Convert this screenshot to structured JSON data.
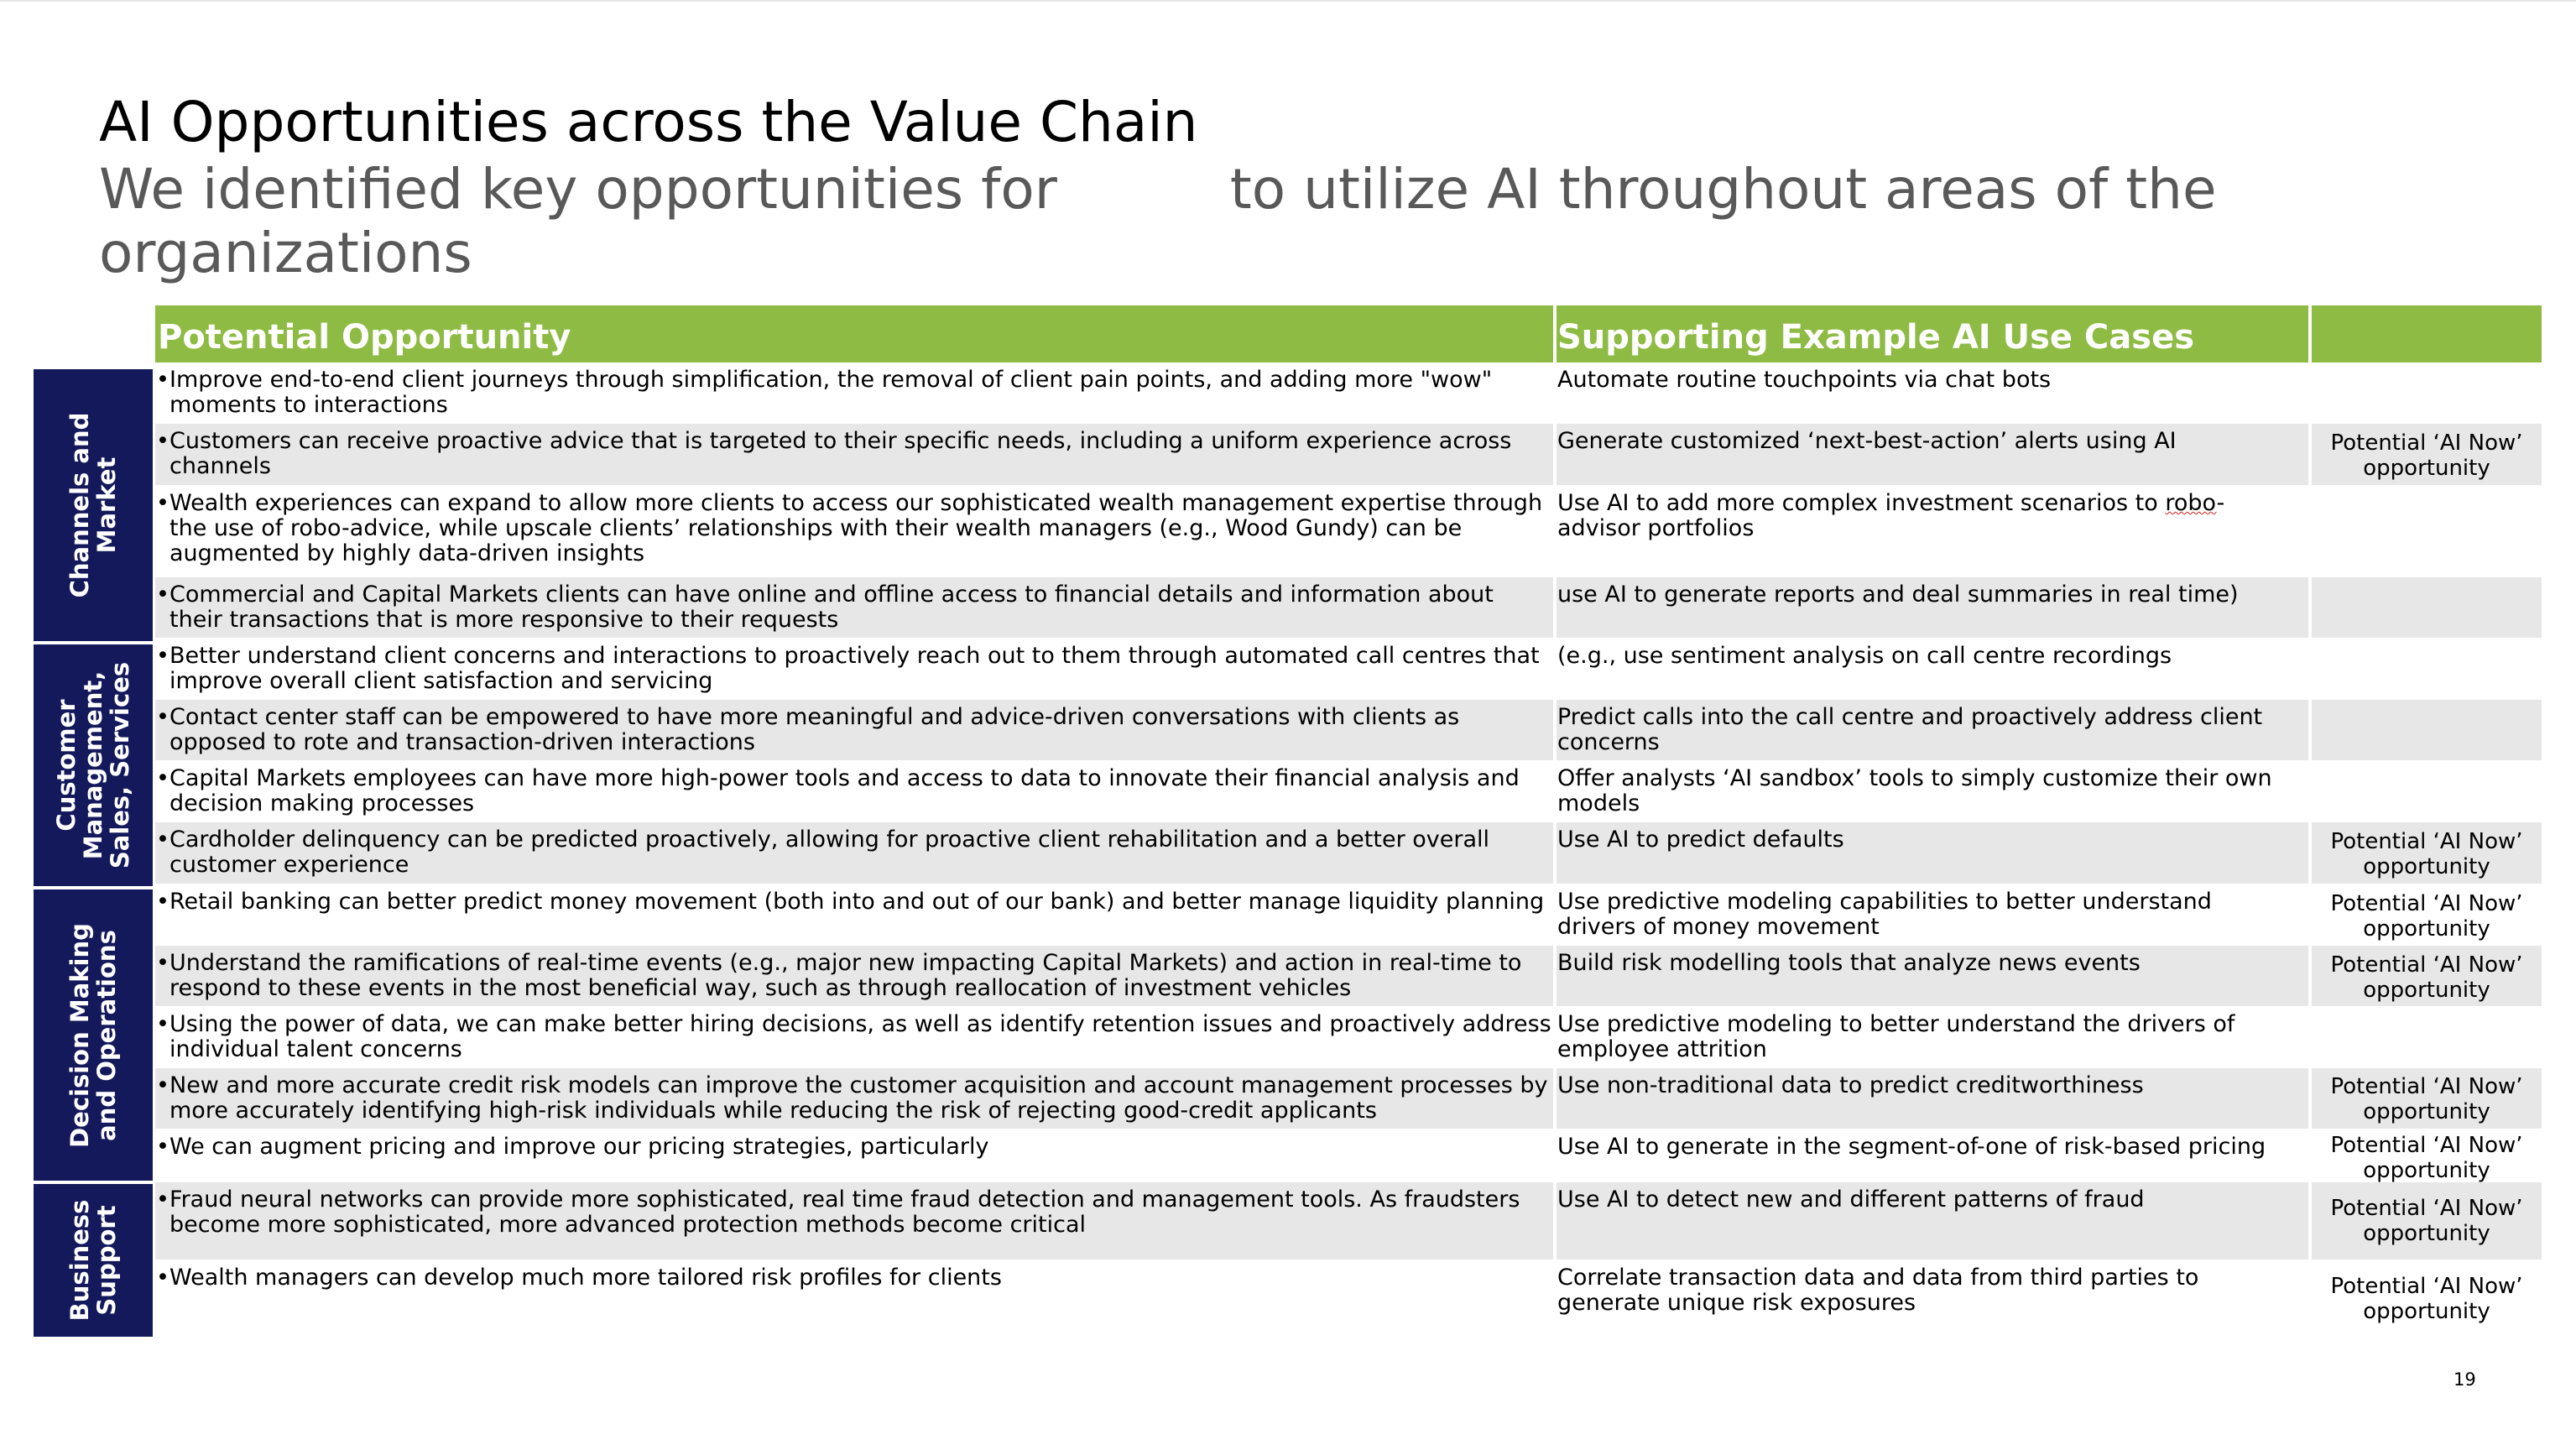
{
  "title": "AI Opportunities across the Value Chain",
  "subtitle": {
    "part1": "We identified key opportunities for",
    "part2": "to utilize AI throughout areas of the",
    "line2": "organizations"
  },
  "table": {
    "headers": {
      "opportunity": "Potential Opportunity",
      "use_cases": "Supporting Example AI Use Cases"
    },
    "categories": [
      {
        "label": "Channels and Market"
      },
      {
        "label": "Customer Management, Sales, Services"
      },
      {
        "label": "Decision Making and Operations"
      },
      {
        "label": "Business Support"
      }
    ],
    "bullet": "•",
    "rows": [
      {
        "opp": "Improve end-to-end client journeys through simplification, the removal of client pain points, and adding more \"wow\" moments to interactions",
        "use": "Automate routine touchpoints via chat bots",
        "now": ""
      },
      {
        "opp": "Customers can receive proactive advice that is targeted to their specific needs, including a uniform experience across channels",
        "use": "Generate customized ‘next-best-action’ alerts using AI",
        "now": "Potential ‘AI Now’ opportunity"
      },
      {
        "opp": "Wealth experiences can expand to allow more clients to access our sophisticated wealth management expertise through the use of robo-advice, while upscale clients’ relationships with their wealth managers (e.g., Wood Gundy) can be augmented by highly data-driven insights",
        "use_pre": "Use AI to add more complex investment scenarios to ",
        "use_squig": "robo",
        "use_post": "-advisor portfolios",
        "now": ""
      },
      {
        "opp": "Commercial and Capital Markets clients can have online and offline access to financial details and information about their transactions that is more responsive to their requests",
        "use": "use AI to generate reports and deal summaries in real time)",
        "now": ""
      },
      {
        "opp": "Better understand client concerns and interactions to proactively reach out to them through automated call centres that improve overall client satisfaction and servicing",
        "use": "(e.g., use sentiment analysis on call centre recordings",
        "now": ""
      },
      {
        "opp": "Contact center staff can be empowered to have more meaningful and advice-driven conversations with clients as opposed to rote and transaction-driven interactions",
        "use": "Predict calls into the call centre and proactively address client concerns",
        "now": ""
      },
      {
        "opp": "Capital Markets employees can have more high-power tools and access to data to innovate their financial analysis and decision making processes",
        "use": "Offer analysts ‘AI sandbox’ tools to simply customize their own models",
        "now": ""
      },
      {
        "opp": "Cardholder delinquency can be predicted proactively, allowing for proactive client rehabilitation and a better overall customer experience",
        "use": "Use AI to predict defaults",
        "now": "Potential ‘AI Now’ opportunity"
      },
      {
        "opp": "Retail banking can better predict money movement (both into and out of our bank) and better manage liquidity planning",
        "use": "Use predictive modeling capabilities to better understand drivers of money movement",
        "now": "Potential ‘AI Now’ opportunity"
      },
      {
        "opp": "Understand the ramifications of real-time events (e.g., major new impacting Capital Markets) and action in real-time to respond to these events in the most beneficial way, such as through reallocation of investment vehicles",
        "use": "Build risk modelling tools that analyze news events",
        "now": "Potential ‘AI Now’ opportunity"
      },
      {
        "opp": "Using the power of data, we can make better hiring decisions, as well as identify retention issues and proactively address individual talent concerns",
        "use": "Use predictive modeling to better understand the drivers of employee attrition",
        "now": ""
      },
      {
        "opp": "New and more accurate credit risk models can improve the customer acquisition and account management processes by more accurately identifying high-risk individuals while reducing the risk of rejecting good-credit applicants",
        "use": "Use non-traditional data to predict creditworthiness",
        "now": "Potential ‘AI Now’ opportunity"
      },
      {
        "opp": "We can augment pricing and improve our pricing strategies, particularly",
        "use": "Use AI to generate in the segment-of-one of risk-based pricing",
        "now": "Potential ‘AI Now’ opportunity"
      },
      {
        "opp": "Fraud neural networks can provide more sophisticated, real time fraud detection and management tools. As fraudsters become more sophisticated, more advanced protection methods become critical",
        "use": "Use AI to detect new and different patterns of fraud",
        "now": "Potential ‘AI Now’ opportunity"
      },
      {
        "opp": "Wealth managers can develop much more tailored risk profiles for clients",
        "use": "Correlate transaction data and data from third parties to generate unique risk exposures",
        "now": "Potential ‘AI Now’ opportunity"
      }
    ]
  },
  "page_number": "19"
}
